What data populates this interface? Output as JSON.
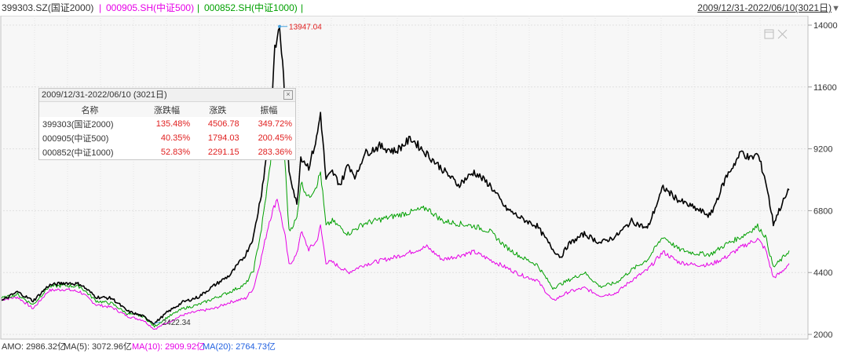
{
  "legend": [
    {
      "text": "399303.SZ(国证2000)",
      "color": "#333333"
    },
    {
      "text": "000905.SH(中证500)",
      "color": "#e600e6"
    },
    {
      "text": "000852.SH(中证1000)",
      "color": "#00a000"
    }
  ],
  "separator": "|",
  "range_label": "2009/12/31-2022/06/10(3021日)",
  "info_box": {
    "title": "2009/12/31-2022/06/10 (3021日)",
    "headers": [
      "名称",
      "涨跌幅",
      "涨跌",
      "振幅"
    ],
    "rows": [
      {
        "name": "399303(国证2000)",
        "change_pct": "135.48%",
        "change": "4506.78",
        "amplitude": "349.72%"
      },
      {
        "name": "000905(中证500)",
        "change_pct": "40.35%",
        "change": "1794.03",
        "amplitude": "200.45%"
      },
      {
        "name": "000852(中证1000)",
        "change_pct": "52.83%",
        "change": "2291.15",
        "amplitude": "283.36%"
      }
    ]
  },
  "bottom_bar": [
    {
      "text": "AMO: 2986.32亿",
      "color": "#333333"
    },
    {
      "text": "MA(5): 3072.96亿",
      "color": "#333333"
    },
    {
      "text": "MA(10): 2909.92亿",
      "color": "#e600e6"
    },
    {
      "text": "MA(20): 2764.73亿",
      "color": "#2060e0"
    }
  ],
  "chart_data": {
    "type": "line",
    "x_range": [
      "2009/12/31",
      "2022/06/10"
    ],
    "ylim": [
      2000,
      14000
    ],
    "y_ticks": [
      2000,
      4400,
      6800,
      9200,
      11600,
      14000
    ],
    "annotations": [
      {
        "text": "13947.04",
        "x": 0.353,
        "y": 13947.04,
        "color": "#e02020"
      },
      {
        "text": "2422.34",
        "x": 0.194,
        "y": 2422.34,
        "color": "#333333"
      }
    ],
    "series": [
      {
        "name": "399303.SZ(国证2000)",
        "color": "#000000",
        "points": [
          [
            0,
            3300
          ],
          [
            0.02,
            3650
          ],
          [
            0.04,
            3300
          ],
          [
            0.06,
            3900
          ],
          [
            0.08,
            4000
          ],
          [
            0.1,
            3950
          ],
          [
            0.12,
            3450
          ],
          [
            0.14,
            3400
          ],
          [
            0.16,
            2900
          ],
          [
            0.18,
            2700
          ],
          [
            0.194,
            2422
          ],
          [
            0.21,
            2850
          ],
          [
            0.23,
            3250
          ],
          [
            0.25,
            3450
          ],
          [
            0.27,
            3900
          ],
          [
            0.29,
            4300
          ],
          [
            0.3,
            4700
          ],
          [
            0.31,
            5100
          ],
          [
            0.32,
            5800
          ],
          [
            0.33,
            7500
          ],
          [
            0.34,
            9700
          ],
          [
            0.347,
            13000
          ],
          [
            0.353,
            13947
          ],
          [
            0.358,
            12000
          ],
          [
            0.365,
            8400
          ],
          [
            0.375,
            7000
          ],
          [
            0.38,
            8900
          ],
          [
            0.39,
            8500
          ],
          [
            0.4,
            9600
          ],
          [
            0.405,
            10600
          ],
          [
            0.412,
            8000
          ],
          [
            0.42,
            8300
          ],
          [
            0.43,
            7800
          ],
          [
            0.44,
            8600
          ],
          [
            0.45,
            8100
          ],
          [
            0.46,
            9000
          ],
          [
            0.48,
            9300
          ],
          [
            0.5,
            9100
          ],
          [
            0.52,
            9600
          ],
          [
            0.54,
            9000
          ],
          [
            0.56,
            8400
          ],
          [
            0.58,
            7800
          ],
          [
            0.6,
            8300
          ],
          [
            0.62,
            7800
          ],
          [
            0.64,
            6900
          ],
          [
            0.66,
            6500
          ],
          [
            0.68,
            6200
          ],
          [
            0.7,
            5300
          ],
          [
            0.71,
            5000
          ],
          [
            0.72,
            5500
          ],
          [
            0.74,
            5900
          ],
          [
            0.76,
            5550
          ],
          [
            0.78,
            5800
          ],
          [
            0.8,
            6400
          ],
          [
            0.82,
            6100
          ],
          [
            0.84,
            7700
          ],
          [
            0.86,
            7200
          ],
          [
            0.88,
            6900
          ],
          [
            0.9,
            6600
          ],
          [
            0.92,
            8100
          ],
          [
            0.94,
            9100
          ],
          [
            0.95,
            8800
          ],
          [
            0.96,
            9000
          ],
          [
            0.97,
            8000
          ],
          [
            0.98,
            6300
          ],
          [
            0.99,
            7000
          ],
          [
            1.0,
            7600
          ]
        ]
      },
      {
        "name": "000905.SH(中证500)",
        "color": "#e600e6",
        "points": [
          [
            0,
            3350
          ],
          [
            0.02,
            3450
          ],
          [
            0.04,
            3000
          ],
          [
            0.06,
            3700
          ],
          [
            0.08,
            3750
          ],
          [
            0.1,
            3650
          ],
          [
            0.12,
            3150
          ],
          [
            0.14,
            3050
          ],
          [
            0.16,
            2700
          ],
          [
            0.18,
            2550
          ],
          [
            0.194,
            2200
          ],
          [
            0.21,
            2450
          ],
          [
            0.23,
            2750
          ],
          [
            0.25,
            2900
          ],
          [
            0.27,
            3000
          ],
          [
            0.29,
            3250
          ],
          [
            0.31,
            3400
          ],
          [
            0.32,
            3800
          ],
          [
            0.33,
            5000
          ],
          [
            0.34,
            6400
          ],
          [
            0.35,
            7300
          ],
          [
            0.36,
            5800
          ],
          [
            0.365,
            4700
          ],
          [
            0.375,
            5100
          ],
          [
            0.38,
            6000
          ],
          [
            0.39,
            5300
          ],
          [
            0.4,
            5600
          ],
          [
            0.405,
            6200
          ],
          [
            0.412,
            4800
          ],
          [
            0.42,
            4800
          ],
          [
            0.44,
            4400
          ],
          [
            0.46,
            4700
          ],
          [
            0.5,
            5000
          ],
          [
            0.54,
            5400
          ],
          [
            0.56,
            4900
          ],
          [
            0.6,
            5200
          ],
          [
            0.64,
            4600
          ],
          [
            0.66,
            4300
          ],
          [
            0.68,
            4100
          ],
          [
            0.7,
            3300
          ],
          [
            0.72,
            3650
          ],
          [
            0.74,
            3800
          ],
          [
            0.76,
            3500
          ],
          [
            0.78,
            3600
          ],
          [
            0.8,
            4100
          ],
          [
            0.82,
            4500
          ],
          [
            0.84,
            5200
          ],
          [
            0.86,
            4800
          ],
          [
            0.88,
            4700
          ],
          [
            0.9,
            4700
          ],
          [
            0.92,
            5000
          ],
          [
            0.94,
            5400
          ],
          [
            0.96,
            5700
          ],
          [
            0.97,
            5300
          ],
          [
            0.98,
            4200
          ],
          [
            0.99,
            4400
          ],
          [
            1.0,
            4750
          ]
        ]
      },
      {
        "name": "000852.SH(中证1000)",
        "color": "#00a000",
        "points": [
          [
            0,
            3400
          ],
          [
            0.02,
            3550
          ],
          [
            0.04,
            3150
          ],
          [
            0.06,
            3850
          ],
          [
            0.08,
            3900
          ],
          [
            0.1,
            3850
          ],
          [
            0.12,
            3300
          ],
          [
            0.14,
            3200
          ],
          [
            0.16,
            2800
          ],
          [
            0.18,
            2700
          ],
          [
            0.194,
            2300
          ],
          [
            0.21,
            2650
          ],
          [
            0.23,
            3000
          ],
          [
            0.25,
            3150
          ],
          [
            0.27,
            3400
          ],
          [
            0.29,
            3650
          ],
          [
            0.31,
            3950
          ],
          [
            0.32,
            4500
          ],
          [
            0.33,
            6100
          ],
          [
            0.34,
            8300
          ],
          [
            0.35,
            11300
          ],
          [
            0.358,
            9600
          ],
          [
            0.365,
            6000
          ],
          [
            0.375,
            6500
          ],
          [
            0.38,
            7900
          ],
          [
            0.39,
            7300
          ],
          [
            0.4,
            7800
          ],
          [
            0.405,
            8300
          ],
          [
            0.412,
            6200
          ],
          [
            0.42,
            6400
          ],
          [
            0.44,
            5900
          ],
          [
            0.46,
            6300
          ],
          [
            0.5,
            6600
          ],
          [
            0.54,
            6900
          ],
          [
            0.56,
            6400
          ],
          [
            0.6,
            6200
          ],
          [
            0.62,
            6000
          ],
          [
            0.64,
            5400
          ],
          [
            0.66,
            5000
          ],
          [
            0.68,
            4700
          ],
          [
            0.7,
            3800
          ],
          [
            0.72,
            4100
          ],
          [
            0.74,
            4400
          ],
          [
            0.76,
            3850
          ],
          [
            0.78,
            4000
          ],
          [
            0.8,
            4500
          ],
          [
            0.82,
            4900
          ],
          [
            0.84,
            5800
          ],
          [
            0.86,
            5300
          ],
          [
            0.88,
            5150
          ],
          [
            0.9,
            5100
          ],
          [
            0.92,
            5500
          ],
          [
            0.94,
            5800
          ],
          [
            0.96,
            6200
          ],
          [
            0.97,
            5800
          ],
          [
            0.98,
            4600
          ],
          [
            0.99,
            4900
          ],
          [
            1.0,
            5250
          ]
        ]
      }
    ]
  }
}
